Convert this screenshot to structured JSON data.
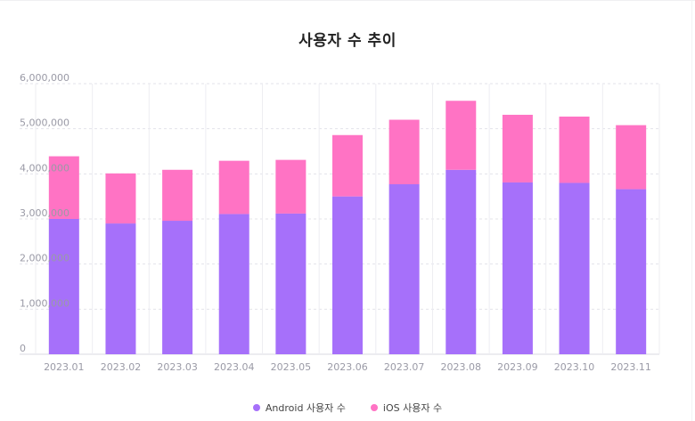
{
  "chart_data": {
    "type": "bar",
    "stacked": true,
    "title": "사용자 수 추이",
    "categories": [
      "2023.01",
      "2023.02",
      "2023.03",
      "2023.04",
      "2023.05",
      "2023.06",
      "2023.07",
      "2023.08",
      "2023.09",
      "2023.10",
      "2023.11"
    ],
    "series": [
      {
        "name": "Android 사용자 수",
        "color": "#a670fa",
        "values": [
          3000000,
          2900000,
          2960000,
          3110000,
          3120000,
          3500000,
          3770000,
          4090000,
          3810000,
          3800000,
          3660000
        ]
      },
      {
        "name": "iOS 사용자 수",
        "color": "#ff73c4",
        "values": [
          1390000,
          1110000,
          1130000,
          1180000,
          1190000,
          1360000,
          1430000,
          1530000,
          1500000,
          1470000,
          1420000
        ]
      }
    ],
    "ylim": [
      0,
      6000000
    ],
    "y_ticks": [
      "0",
      "1,000,000",
      "2,000,000",
      "3,000,000",
      "4,000,000",
      "5,000,000",
      "6,000,000"
    ],
    "grid": true,
    "legend_position": "bottom"
  }
}
